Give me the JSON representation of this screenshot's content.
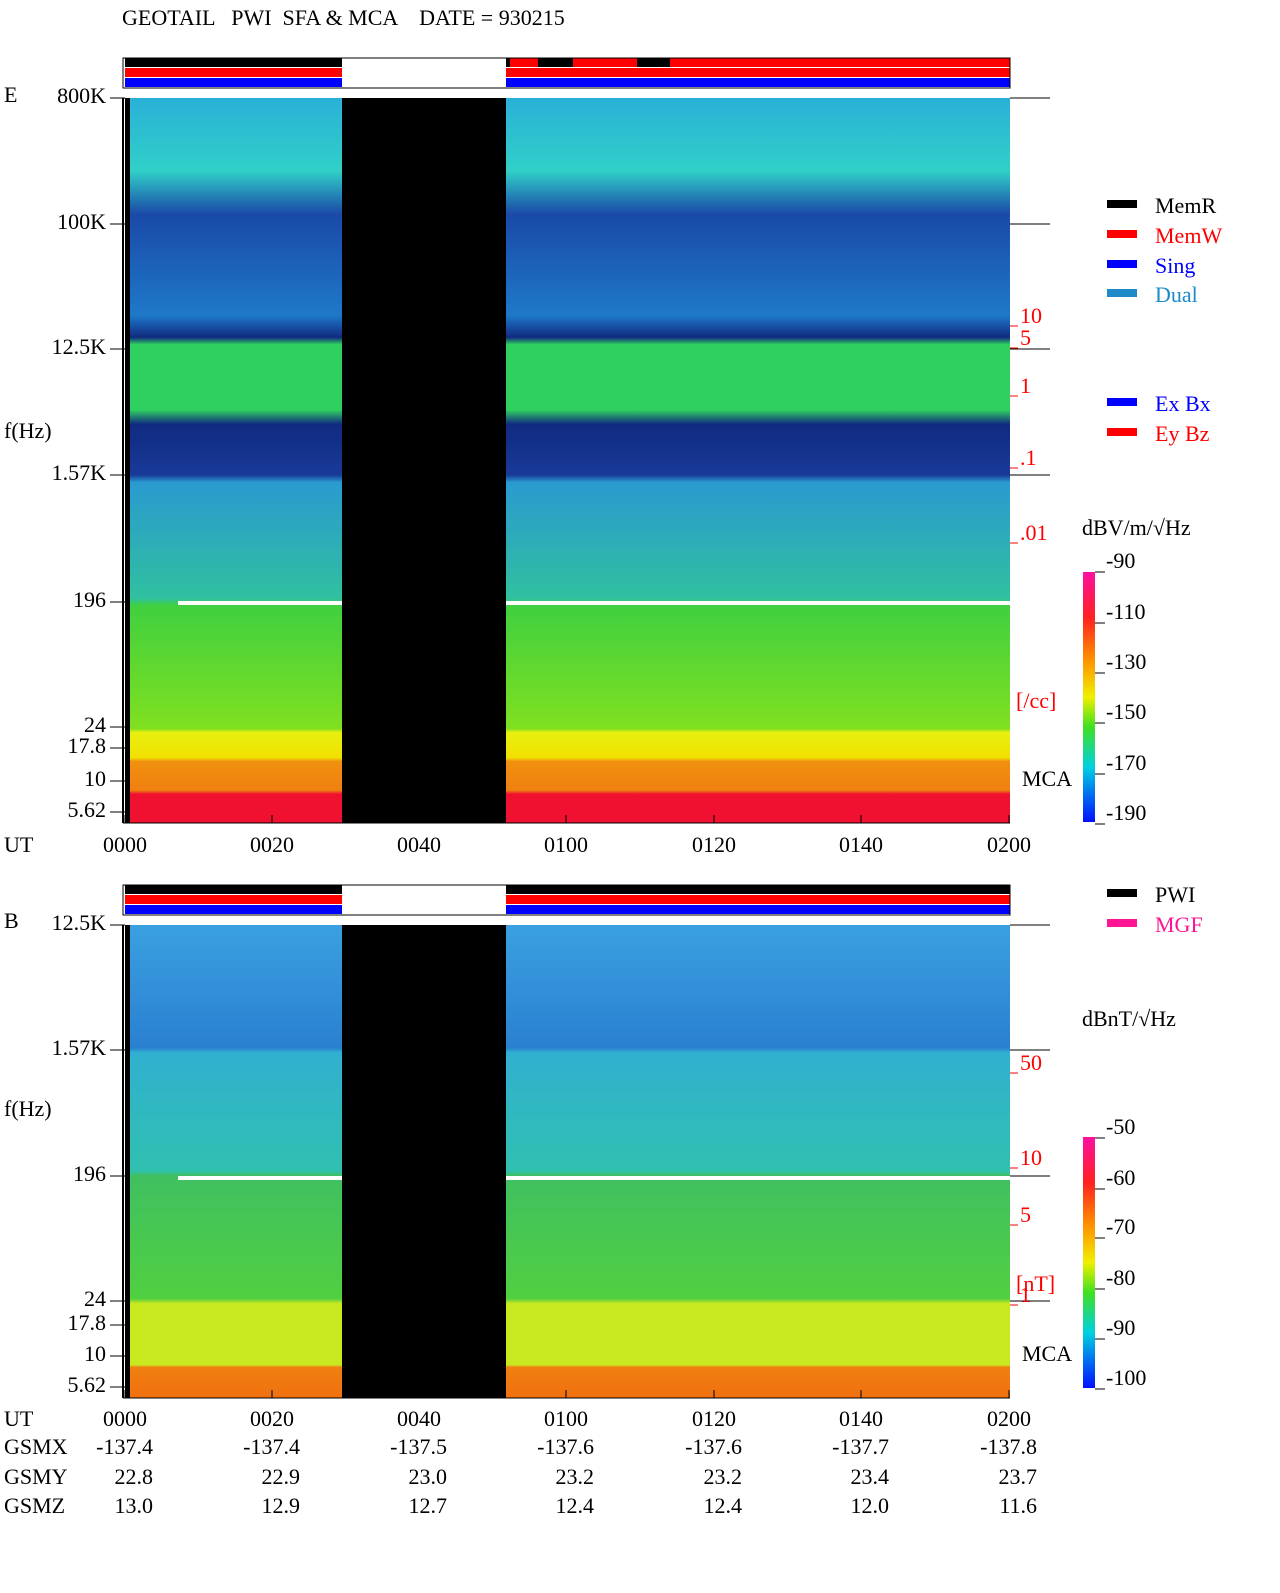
{
  "title": "GEOTAIL   PWI  SFA & MCA    DATE = 930215",
  "panels": [
    {
      "label": "E",
      "ylabel": "f(Hz)",
      "yticks": [
        "800K",
        "100K",
        "12.5K",
        "1.57K",
        "196",
        "24",
        "17.8",
        "10",
        "5.62"
      ],
      "density_ticks": [
        "10",
        "5",
        "1",
        ".1",
        ".01"
      ],
      "density_unit": "[/cc]",
      "mca": "MCA",
      "cbar_unit": "dBV/m/√Hz",
      "cbar_ticks": [
        "-90",
        "-110",
        "-130",
        "-150",
        "-170",
        "-190"
      ],
      "legend": [
        {
          "name": "MemR",
          "color": "#000000"
        },
        {
          "name": "MemW",
          "color": "#ff0000"
        },
        {
          "name": "Sing",
          "color": "#0000ff"
        },
        {
          "name": "Dual",
          "color": "#1e8ac8"
        },
        {
          "name": "Ex Bx",
          "color": "#0000ff"
        },
        {
          "name": "Ey Bz",
          "color": "#ff0000"
        }
      ]
    },
    {
      "label": "B",
      "ylabel": "f(Hz)",
      "yticks": [
        "12.5K",
        "1.57K",
        "196",
        "24",
        "17.8",
        "10",
        "5.62"
      ],
      "density_ticks": [
        "50",
        "10",
        "5",
        "1"
      ],
      "density_unit": "[nT]",
      "mca": "MCA",
      "cbar_unit": "dBnT/√Hz",
      "cbar_ticks": [
        "-50",
        "-60",
        "-70",
        "-80",
        "-90",
        "-100"
      ],
      "legend": [
        {
          "name": "PWI",
          "color": "#000000"
        },
        {
          "name": "MGF",
          "color": "#ff1493"
        }
      ]
    }
  ],
  "time_label": "UT",
  "time_ticks": [
    "0000",
    "0020",
    "0040",
    "0100",
    "0120",
    "0140",
    "0200"
  ],
  "ephemeris": [
    {
      "name": "GSMX",
      "values": [
        "-137.4",
        "-137.4",
        "-137.5",
        "-137.6",
        "-137.6",
        "-137.7",
        "-137.8"
      ]
    },
    {
      "name": "GSMY",
      "values": [
        "22.8",
        "22.9",
        "23.0",
        "23.2",
        "23.2",
        "23.4",
        "23.7"
      ]
    },
    {
      "name": "GSMZ",
      "values": [
        "13.0",
        "12.9",
        "12.7",
        "12.4",
        "12.4",
        "12.0",
        "11.6"
      ]
    }
  ]
}
